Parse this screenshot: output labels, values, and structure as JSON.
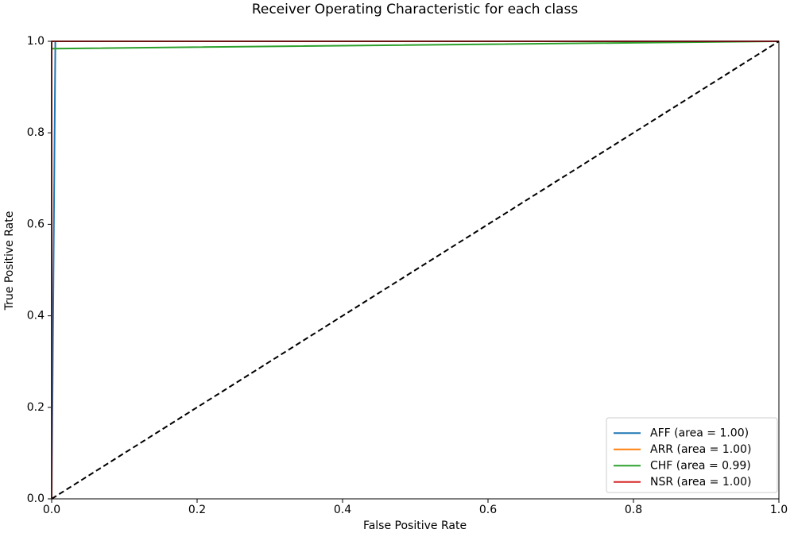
{
  "chart_data": {
    "type": "line",
    "title": "Receiver Operating Characteristic for each class",
    "x_label": "False Positive Rate",
    "y_label": "True Positive Rate",
    "xlim": [
      0,
      1
    ],
    "ylim": [
      0,
      1
    ],
    "xticks": [
      {
        "value": 0,
        "label": "0.0"
      },
      0.2,
      0.4,
      0.6,
      0.8,
      {
        "value": 1,
        "label": "1.0"
      }
    ],
    "yticks": [
      {
        "value": 0,
        "label": "0.0"
      },
      0.2,
      0.4,
      0.6,
      0.8,
      {
        "value": 1,
        "label": "1.0"
      }
    ],
    "legend": "lower right",
    "series": [
      {
        "name": "AFF (area = 1.00)",
        "color": "#1f77b4",
        "x": [
          0,
          0.005,
          0.005,
          1
        ],
        "values": [
          0,
          0.985,
          1,
          1
        ]
      },
      {
        "name": "ARR (area = 1.00)",
        "color": "#ff7f0e",
        "x": [
          0,
          0,
          1
        ],
        "values": [
          0,
          1,
          1
        ]
      },
      {
        "name": "CHF (area = 0.99)",
        "color": "#2ca02c",
        "x": [
          0,
          0,
          1
        ],
        "values": [
          0,
          0.984,
          1
        ]
      },
      {
        "name": "NSR (area = 1.00)",
        "color": "#d62728",
        "x": [
          0,
          0,
          1
        ],
        "values": [
          0,
          1,
          1
        ]
      }
    ],
    "reference_line": {
      "color": "#000000",
      "x": [
        0,
        1
      ],
      "values": [
        0,
        1
      ]
    }
  }
}
